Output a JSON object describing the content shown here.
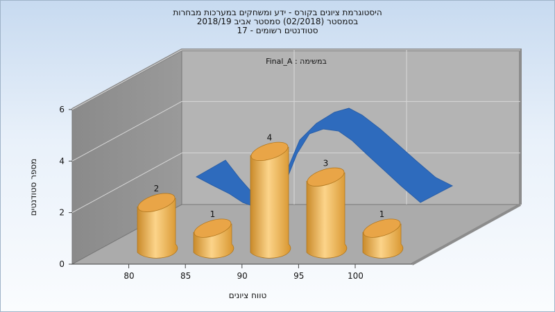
{
  "chart_data": {
    "type": "bar",
    "title_lines": [
      "היסטוגרמת ציונים בקורס - ידע ומשחקים במערכות מבחרות",
      "בסמסטר  (02/2018)  סמסטר אביב 2018/19",
      "סטודנטים רשומים - 17"
    ],
    "annotation": "במשימה : Final_A",
    "xlabel": "טווח ציונים",
    "ylabel": "מספר סטודנטים",
    "categories": [
      "80",
      "85",
      "90",
      "95",
      "100"
    ],
    "x_ticks": [
      "80",
      "85",
      "90",
      "95",
      "100"
    ],
    "y_ticks": [
      "0",
      "2",
      "4",
      "6"
    ],
    "ylim": [
      0,
      6
    ],
    "series": [
      {
        "values": [
          2,
          1,
          4,
          3,
          1
        ],
        "color": "#f0b65a"
      }
    ],
    "curve": {
      "description_type": "normal-curve",
      "color": "#2e6bbd"
    },
    "grid": true,
    "legend": "none"
  }
}
